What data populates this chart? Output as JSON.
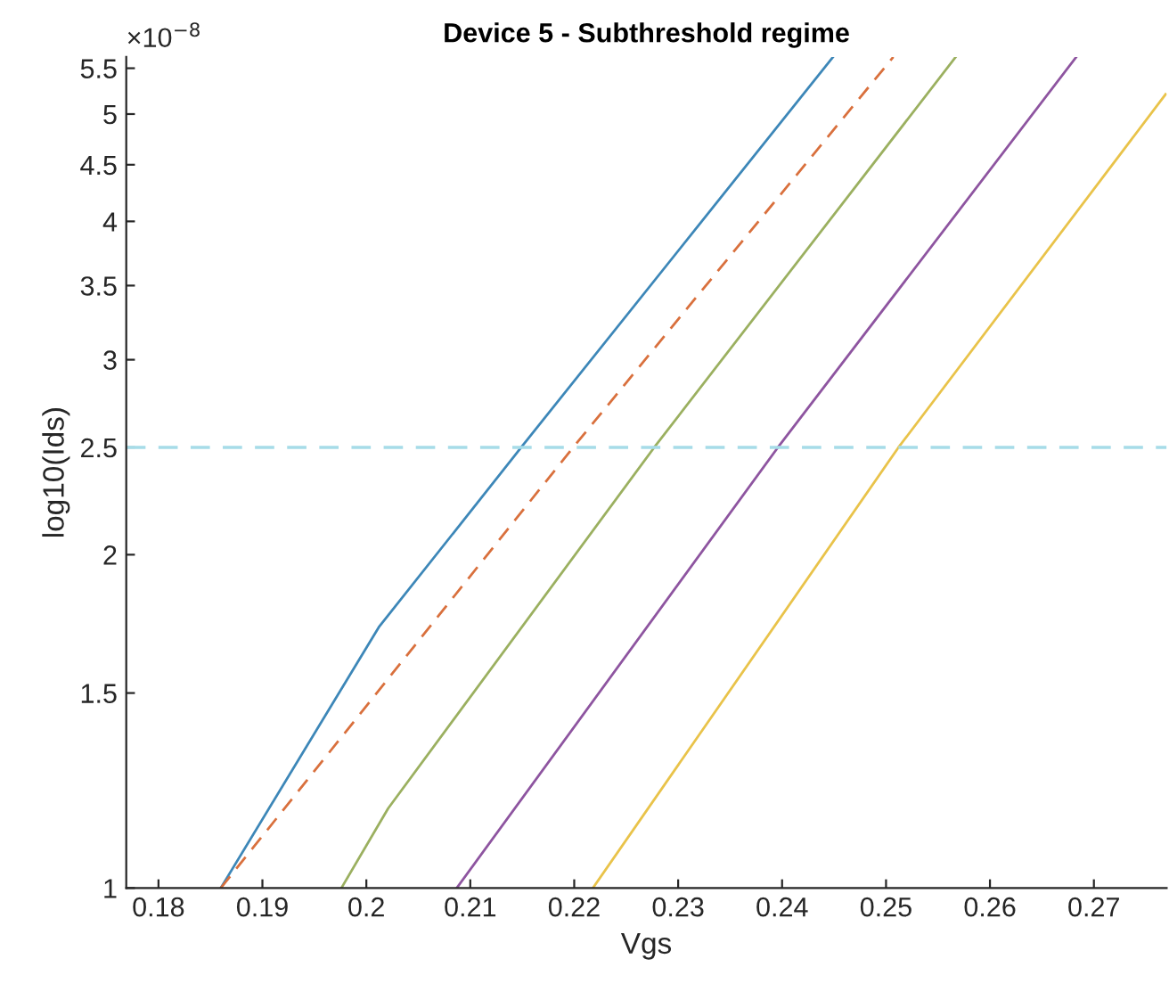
{
  "chart_data": {
    "type": "line",
    "title": "Device 5 - Subthreshold regime",
    "xlabel": "Vgs",
    "ylabel": "log10(Ids)",
    "annotations": [
      "×10$^{−8}$"
    ],
    "log": "y",
    "grid": false,
    "marker": "none",
    "xlim": [
      0.1769,
      0.277
    ],
    "xticks": [
      0.18,
      0.19,
      0.2,
      0.21,
      0.22,
      0.23,
      0.24,
      0.25,
      0.26,
      0.27
    ],
    "ylim": [
      1,
      5.63
    ],
    "yticks": [
      1,
      1.5,
      2,
      2.5,
      3,
      3.5,
      4,
      4.5,
      5,
      5.5
    ],
    "series": [
      {
        "color": "#3d87b8",
        "line_style": "solid",
        "x": [
          0.186,
          0.2012,
          0.2149,
          0.2449
        ],
        "values": [
          1,
          1.72,
          2.5,
          5.63
        ]
      },
      {
        "color": "#d9703d",
        "line_style": "dashed",
        "x": [
          0.186,
          0.2199,
          0.2507
        ],
        "values": [
          1,
          2.5,
          5.63
        ]
      },
      {
        "color": "#9bb060",
        "line_style": "solid",
        "x": [
          0.1976,
          0.2021,
          0.2277,
          0.2567
        ],
        "values": [
          1,
          1.18,
          2.5,
          5.63
        ]
      },
      {
        "color": "#8e55a0",
        "line_style": "solid",
        "x": [
          0.2087,
          0.2396,
          0.2683
        ],
        "values": [
          1,
          2.5,
          5.63
        ]
      },
      {
        "color": "#e9c34a",
        "line_style": "solid",
        "x": [
          0.2218,
          0.2512,
          0.2769
        ],
        "values": [
          1,
          2.5,
          5.21
        ]
      }
    ],
    "ref_lines": [
      {
        "axis": "y",
        "value": 2.5,
        "color": "#a6dce8",
        "line_style": "dashed"
      }
    ]
  }
}
